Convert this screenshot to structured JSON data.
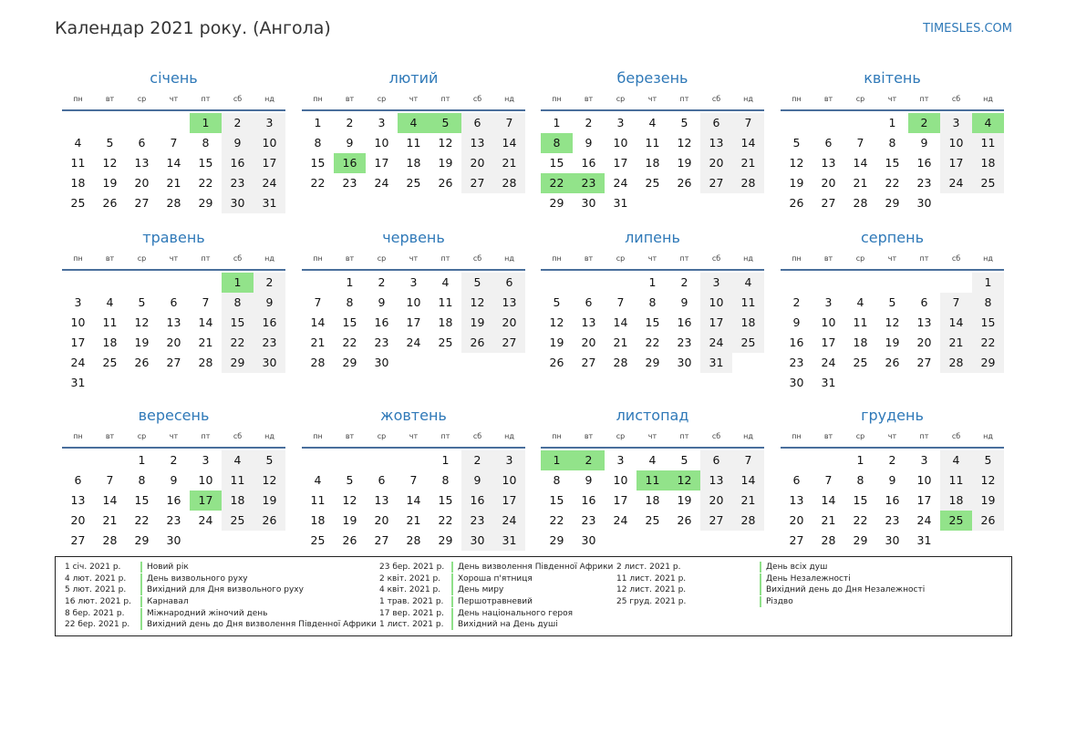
{
  "header": {
    "title": "Календар 2021 року. (Ангола)",
    "site": "TIMESLES.COM"
  },
  "weekday_labels": [
    "пн",
    "вт",
    "ср",
    "чт",
    "пт",
    "сб",
    "нд"
  ],
  "months": [
    {
      "name": "січень",
      "offset": 4,
      "days": 31,
      "holidays": [
        1
      ]
    },
    {
      "name": "лютий",
      "offset": 0,
      "days": 28,
      "holidays": [
        4,
        5,
        16
      ]
    },
    {
      "name": "березень",
      "offset": 0,
      "days": 31,
      "holidays": [
        8,
        22,
        23
      ]
    },
    {
      "name": "квітень",
      "offset": 3,
      "days": 30,
      "holidays": [
        2,
        4
      ]
    },
    {
      "name": "травень",
      "offset": 5,
      "days": 31,
      "holidays": [
        1
      ]
    },
    {
      "name": "червень",
      "offset": 1,
      "days": 30,
      "holidays": []
    },
    {
      "name": "липень",
      "offset": 3,
      "days": 31,
      "holidays": []
    },
    {
      "name": "серпень",
      "offset": 6,
      "days": 31,
      "holidays": []
    },
    {
      "name": "вересень",
      "offset": 2,
      "days": 30,
      "holidays": [
        17
      ]
    },
    {
      "name": "жовтень",
      "offset": 4,
      "days": 31,
      "holidays": []
    },
    {
      "name": "листопад",
      "offset": 0,
      "days": 30,
      "holidays": [
        1,
        2,
        11,
        12
      ]
    },
    {
      "name": "грудень",
      "offset": 2,
      "days": 31,
      "holidays": [
        25
      ]
    }
  ],
  "holiday_list": [
    [
      {
        "date": "1 січ. 2021 р.",
        "name": "Новий рік"
      },
      {
        "date": "4 лют. 2021 р.",
        "name": "День визвольного руху"
      },
      {
        "date": "5 лют. 2021 р.",
        "name": "Вихідний для Дня визвольного руху"
      },
      {
        "date": "16 лют. 2021 р.",
        "name": "Карнавал"
      },
      {
        "date": "8 бер. 2021 р.",
        "name": "Міжнародний жіночий день"
      },
      {
        "date": "22 бер. 2021 р.",
        "name": "Вихідний день до Дня визволення Південної Африки"
      }
    ],
    [
      {
        "date": "23 бер. 2021 р.",
        "name": "День визволення Південної Африки"
      },
      {
        "date": "2 квіт. 2021 р.",
        "name": "Хороша п'ятниця"
      },
      {
        "date": "4 квіт. 2021 р.",
        "name": "День миру"
      },
      {
        "date": "1 трав. 2021 р.",
        "name": "Першотравневий"
      },
      {
        "date": "17 вер. 2021 р.",
        "name": "День національного героя"
      },
      {
        "date": "1 лист. 2021 р.",
        "name": "Вихідний на День душі"
      }
    ],
    [
      {
        "date": "2 лист. 2021 р.",
        "name": "День всіх душ"
      },
      {
        "date": "11 лист. 2021 р.",
        "name": "День Незалежності"
      },
      {
        "date": "12 лист. 2021 р.",
        "name": "Вихідний день до Дня Незалежності"
      },
      {
        "date": "25 груд. 2021 р.",
        "name": "Різдво"
      }
    ]
  ]
}
